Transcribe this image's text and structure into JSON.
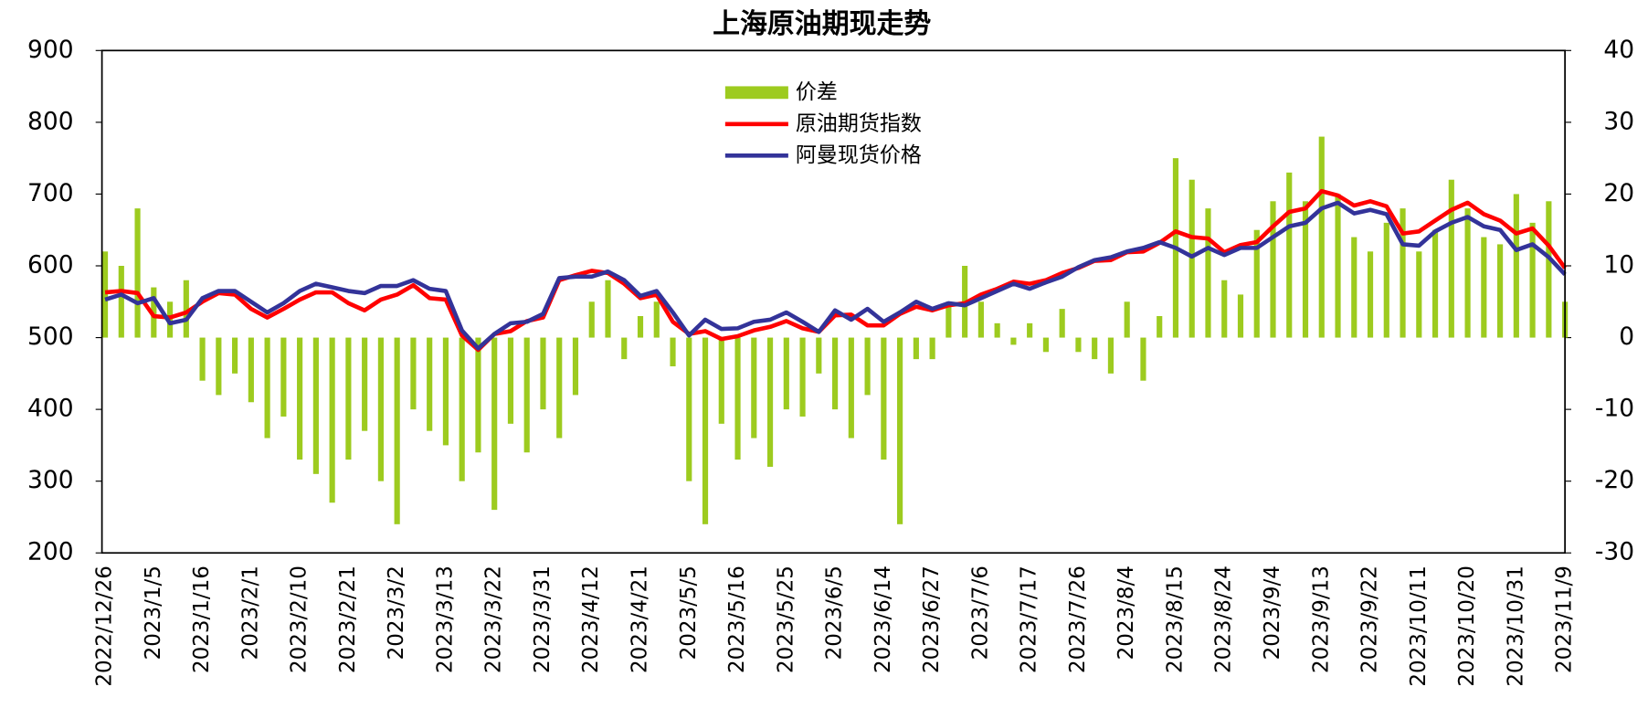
{
  "chart_data": {
    "type": "combo",
    "title": "上海原油期现走势",
    "categories": [
      "2022/12/26",
      null,
      null,
      "2023/1/5",
      null,
      null,
      "2023/1/16",
      null,
      null,
      "2023/2/1",
      null,
      null,
      "2023/2/10",
      null,
      null,
      "2023/2/21",
      null,
      null,
      "2023/3/2",
      null,
      null,
      "2023/3/13",
      null,
      null,
      "2023/3/22",
      null,
      null,
      "2023/3/31",
      null,
      null,
      "2023/4/12",
      null,
      null,
      "2023/4/21",
      null,
      null,
      "2023/5/5",
      null,
      null,
      "2023/5/16",
      null,
      null,
      "2023/5/25",
      null,
      null,
      "2023/6/5",
      null,
      null,
      "2023/6/14",
      null,
      null,
      "2023/6/27",
      null,
      null,
      "2023/7/6",
      null,
      null,
      "2023/7/17",
      null,
      null,
      "2023/7/26",
      null,
      null,
      "2023/8/4",
      null,
      null,
      "2023/8/15",
      null,
      null,
      "2023/8/24",
      null,
      null,
      "2023/9/4",
      null,
      null,
      "2023/9/13",
      null,
      null,
      "2023/9/22",
      null,
      null,
      "2023/10/11",
      null,
      null,
      "2023/10/20",
      null,
      null,
      "2023/10/31",
      null,
      null,
      "2023/11/9"
    ],
    "series": [
      {
        "name": "价差",
        "type": "bar",
        "axis": "y2",
        "color": "#9dcb1f",
        "values": [
          12,
          10,
          18,
          7,
          5,
          8,
          -6,
          -8,
          -5,
          -9,
          -14,
          -11,
          -17,
          -19,
          -23,
          -17,
          -13,
          -20,
          -26,
          -10,
          -13,
          -15,
          -20,
          -16,
          -24,
          -12,
          -16,
          -10,
          -14,
          -8,
          5,
          8,
          -3,
          3,
          5,
          -4,
          -20,
          -26,
          -12,
          -17,
          -14,
          -18,
          -10,
          -11,
          -5,
          -10,
          -14,
          -8,
          -17,
          -26,
          -3,
          -3,
          5,
          10,
          5,
          2,
          -1,
          2,
          -2,
          4,
          -2,
          -3,
          -5,
          5,
          -6,
          3,
          25,
          22,
          18,
          8,
          6,
          15,
          19,
          23,
          19,
          28,
          20,
          14,
          12,
          16,
          18,
          12,
          15,
          22,
          18,
          14,
          13,
          20,
          16,
          19,
          5
        ]
      },
      {
        "name": "原油期货指数",
        "type": "line",
        "color": "#ff0000",
        "values": [
          563,
          565,
          562,
          530,
          528,
          535,
          550,
          562,
          560,
          540,
          528,
          540,
          553,
          563,
          563,
          548,
          538,
          553,
          560,
          573,
          555,
          553,
          503,
          483,
          505,
          509,
          523,
          528,
          580,
          587,
          593,
          590,
          575,
          555,
          560,
          522,
          505,
          509,
          498,
          502,
          510,
          515,
          523,
          513,
          508,
          531,
          532,
          517,
          517,
          533,
          543,
          538,
          545,
          548,
          560,
          568,
          578,
          575,
          580,
          590,
          597,
          607,
          608,
          619,
          620,
          632,
          648,
          640,
          638,
          619,
          629,
          633,
          655,
          675,
          680,
          704,
          698,
          684,
          690,
          683,
          645,
          648,
          663,
          678,
          688,
          672,
          663,
          645,
          652,
          628,
          597
        ]
      },
      {
        "name": "阿曼现货价格",
        "type": "line",
        "color": "#333399",
        "values": [
          553,
          560,
          548,
          555,
          520,
          525,
          555,
          565,
          565,
          550,
          535,
          548,
          565,
          575,
          570,
          565,
          562,
          572,
          572,
          580,
          568,
          565,
          510,
          485,
          505,
          520,
          522,
          533,
          583,
          585,
          585,
          592,
          580,
          558,
          565,
          535,
          503,
          525,
          512,
          513,
          522,
          525,
          535,
          522,
          508,
          538,
          525,
          540,
          522,
          535,
          550,
          540,
          548,
          545,
          555,
          565,
          575,
          568,
          577,
          585,
          598,
          608,
          612,
          620,
          625,
          633,
          625,
          613,
          625,
          615,
          625,
          625,
          640,
          655,
          660,
          680,
          688,
          673,
          678,
          672,
          630,
          628,
          648,
          660,
          668,
          655,
          650,
          622,
          630,
          612,
          588
        ]
      }
    ],
    "ylim": [
      200,
      900
    ],
    "yticks": [
      200,
      300,
      400,
      500,
      600,
      700,
      800,
      900
    ],
    "y2lim": [
      -30,
      40
    ],
    "y2ticks": [
      -30,
      -20,
      -10,
      0,
      10,
      20,
      30,
      40
    ],
    "legend": "top-center"
  }
}
